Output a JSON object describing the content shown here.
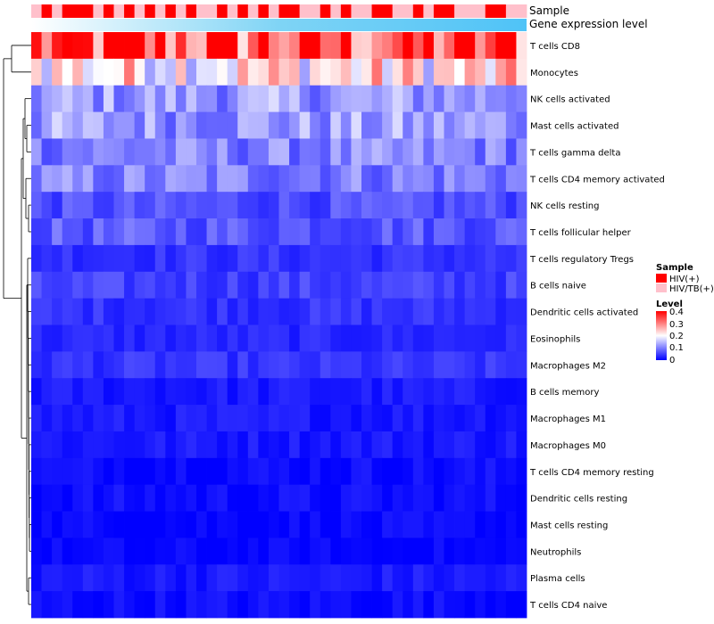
{
  "chart_data": {
    "type": "heatmap",
    "title": "",
    "annotations": {
      "sample_label": "Sample",
      "expression_label": "Gene expression level",
      "sample_groups": [
        "HIV(+)",
        "HIV/TB(+)"
      ],
      "sample_colors": [
        "#ff0000",
        "#ffc0cb"
      ],
      "sample_assignment": [
        1,
        0,
        1,
        0,
        0,
        0,
        1,
        0,
        1,
        0,
        1,
        0,
        1,
        0,
        1,
        0,
        1,
        1,
        0,
        1,
        0,
        1,
        0,
        1,
        0,
        0,
        1,
        1,
        0,
        1,
        0,
        1,
        1,
        0,
        0,
        1,
        1,
        0,
        1,
        0,
        0,
        1,
        1,
        1,
        0,
        0,
        1,
        1
      ],
      "expression_colors": [
        "#ffffff",
        "#7fd4f5",
        "#4fc3f7"
      ]
    },
    "rows": [
      "T cells CD8",
      "Monocytes",
      "NK cells activated",
      "Mast cells activated",
      "T cells gamma delta",
      "T cells CD4 memory activated",
      "NK cells resting",
      "T cells follicular helper",
      "T cells regulatory  Tregs",
      "B cells naive",
      "Dendritic cells activated",
      "Eosinophils",
      "Macrophages M2",
      "B cells memory",
      "Macrophages M1",
      "Macrophages M0",
      "T cells CD4 memory resting",
      "Dendritic cells resting",
      "Mast cells resting",
      "Neutrophils",
      "Plasma cells",
      "T cells CD4 naive"
    ],
    "row_means": [
      0.34,
      0.22,
      0.12,
      0.12,
      0.1,
      0.1,
      0.06,
      0.07,
      0.04,
      0.05,
      0.04,
      0.03,
      0.04,
      0.02,
      0.02,
      0.02,
      0.01,
      0.01,
      0.005,
      0.002,
      0.02,
      0.01
    ],
    "n_samples": 48,
    "scale": {
      "title": "Level",
      "min": 0,
      "max": 0.4,
      "ticks": [
        "0.4",
        "0.3",
        "0.2",
        "0.1",
        "0"
      ],
      "colors": [
        "#0000ff",
        "#ffffff",
        "#ff0000"
      ]
    },
    "legend": {
      "sample_title": "Sample",
      "placement": "right"
    }
  }
}
